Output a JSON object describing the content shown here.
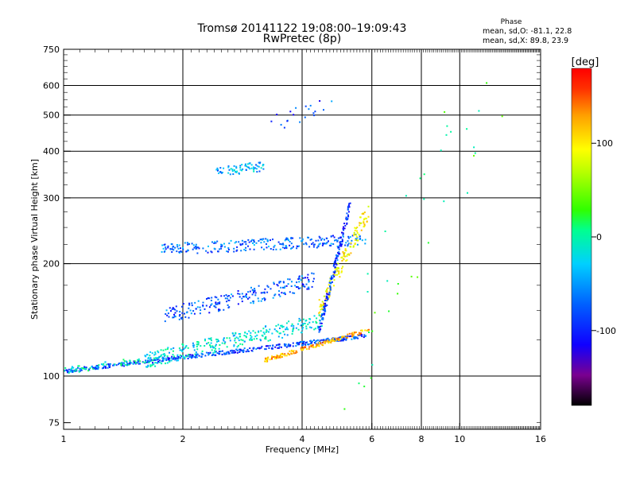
{
  "chart_data": {
    "type": "scatter",
    "title": "Tromsø 20141122 19:08:00–19:09:43",
    "subtitle": "RwPretec (8p)",
    "xlabel": "Frequency [MHz]",
    "ylabel": "Stationary phase Virtual Height [km]",
    "x_scale": "log",
    "y_scale": "log",
    "xlim": [
      1,
      16
    ],
    "ylim": [
      72,
      750
    ],
    "x_tick_labels": [
      "1",
      "2",
      "4",
      "6",
      "8",
      "10",
      "16"
    ],
    "x_ticks": [
      1,
      2,
      4,
      6,
      8,
      10,
      16
    ],
    "x_gridlines": [
      2,
      4,
      6,
      8,
      10
    ],
    "y_tick_labels": [
      "75",
      "100",
      "200",
      "300",
      "400",
      "500",
      "600",
      "750"
    ],
    "y_ticks": [
      75,
      100,
      200,
      300,
      400,
      500,
      600,
      750
    ],
    "y_gridlines": [
      100,
      200,
      300,
      400,
      500,
      600
    ],
    "grid": true,
    "legend": {
      "title": "Phase",
      "line1": "mean, sd,O:  -81.1, 22.8",
      "line2": "mean, sd,X:  89.8, 23.9",
      "placement": "top-right"
    },
    "colorbar": {
      "label": "[deg]",
      "range": [
        -180,
        180
      ],
      "ticks": [
        100,
        0,
        -100
      ],
      "tick_labels": [
        "100",
        "0",
        "-100"
      ],
      "colormap": [
        "#000000",
        "#7a0090",
        "#1000ff",
        "#0060ff",
        "#00d0ff",
        "#00ff90",
        "#30ff00",
        "#c0ff00",
        "#ffff00",
        "#ffa000",
        "#ff3000",
        "#ff0000"
      ]
    },
    "traces": [
      {
        "name": "E-layer O trace",
        "x_range": [
          1.0,
          5.8
        ],
        "y_range": [
          103,
          128
        ],
        "phase": -90,
        "n": 420,
        "spread": 0.012
      },
      {
        "name": "E-layer X trace",
        "x_range": [
          3.2,
          5.9
        ],
        "y_range": [
          110,
          133
        ],
        "phase": 110,
        "n": 160,
        "spread": 0.012
      },
      {
        "name": "Low cyan band",
        "x_range": [
          1.0,
          1.7
        ],
        "y_range": [
          103,
          112
        ],
        "phase": -30,
        "n": 60,
        "spread": 0.02
      },
      {
        "name": "Lower F band",
        "x_range": [
          1.6,
          4.5
        ],
        "y_range": [
          110,
          140
        ],
        "phase": -40,
        "n": 300,
        "spread": 0.05
      },
      {
        "name": "Mid F band",
        "x_range": [
          1.8,
          4.3
        ],
        "y_range": [
          145,
          180
        ],
        "phase": -85,
        "n": 220,
        "spread": 0.05
      },
      {
        "name": "F2 O trace",
        "x_range": [
          1.75,
          5.8
        ],
        "y_range": [
          218,
          232
        ],
        "phase": -80,
        "n": 260,
        "spread": 0.035
      },
      {
        "name": "F2 X trace",
        "x_range": [
          4.4,
          5.9
        ],
        "y_range": [
          150,
          280
        ],
        "phase": 80,
        "n": 140,
        "spread": 0.06
      },
      {
        "name": "Vertical O cusp",
        "x_range": [
          4.4,
          5.3
        ],
        "y_range": [
          130,
          290
        ],
        "phase": -95,
        "n": 160,
        "spread": 0.04
      },
      {
        "name": "Multi-hop echo",
        "x_range": [
          2.4,
          3.2
        ],
        "y_range": [
          350,
          365
        ],
        "phase": -60,
        "n": 70,
        "spread": 0.03
      },
      {
        "name": "High echoes",
        "x_range": [
          3.3,
          4.8
        ],
        "y_range": [
          470,
          540
        ],
        "phase": -90,
        "n": 20,
        "spread": 0.05
      },
      {
        "name": "Scattered",
        "x_range": [
          5.0,
          13.0
        ],
        "y_range": [
          100,
          700
        ],
        "phase": 0,
        "n": 40,
        "spread": 0.4
      }
    ]
  }
}
